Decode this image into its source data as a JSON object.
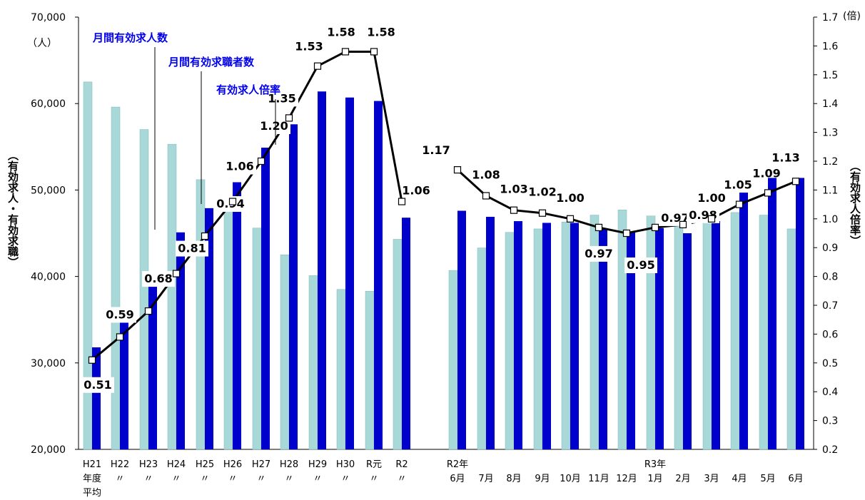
{
  "chart_data": {
    "type": "bar",
    "title": "",
    "ylabel_left": "（有効求人・有効求職）",
    "ylabel_right": "（有効求人倍率）",
    "unit_left": "（人）",
    "unit_right": "(倍)",
    "ylim_left": [
      20000,
      70000
    ],
    "ylim_right": [
      0.2,
      1.7
    ],
    "left_ticks": [
      "20,000",
      "30,000",
      "40,000",
      "50,000",
      "60,000",
      "70,000"
    ],
    "right_ticks": [
      "0.2",
      "0.3",
      "0.4",
      "0.5",
      "0.6",
      "0.7",
      "0.8",
      "0.9",
      "1.0",
      "1.1",
      "1.2",
      "1.3",
      "1.4",
      "1.5",
      "1.6",
      "1.7"
    ],
    "categories": [
      [
        "H21",
        "年度",
        "平均"
      ],
      [
        "H22",
        "〃"
      ],
      [
        "H23",
        "〃"
      ],
      [
        "H24",
        "〃"
      ],
      [
        "H25",
        "〃"
      ],
      [
        "H26",
        "〃"
      ],
      [
        "H27",
        "〃"
      ],
      [
        "H28",
        "〃"
      ],
      [
        "H29",
        "〃"
      ],
      [
        "H30",
        "〃"
      ],
      [
        "R元",
        "〃"
      ],
      [
        "R2",
        "〃"
      ],
      [
        "R2年",
        "6月"
      ],
      [
        "7月"
      ],
      [
        "8月"
      ],
      [
        "9月"
      ],
      [
        "10月"
      ],
      [
        "11月"
      ],
      [
        "12月"
      ],
      [
        "R3年",
        "1月"
      ],
      [
        "2月"
      ],
      [
        "3月"
      ],
      [
        "4月"
      ],
      [
        "5月"
      ],
      [
        "6月"
      ]
    ],
    "series": [
      {
        "name": "月間有効求人数",
        "color": "#a8d8d8",
        "values": [
          62500,
          59600,
          57000,
          55300,
          51200,
          47800,
          45600,
          42500,
          40100,
          38500,
          38300,
          44300,
          40700,
          43300,
          45100,
          45500,
          46300,
          47100,
          47700,
          47000,
          46300,
          46200,
          47400,
          47100,
          45500
        ]
      },
      {
        "name": "月間有効求職者数",
        "color": "#0000cc",
        "values": [
          31800,
          35000,
          39000,
          45100,
          47900,
          50900,
          54900,
          57600,
          61400,
          60700,
          60300,
          46800,
          47600,
          46900,
          46400,
          46200,
          46200,
          45500,
          45100,
          45600,
          45000,
          46400,
          49700,
          51400,
          51400
        ]
      },
      {
        "name": "有効求人倍率",
        "color": "#000000",
        "line": true,
        "values": [
          0.51,
          0.59,
          0.68,
          0.81,
          0.94,
          1.06,
          1.2,
          1.35,
          1.53,
          1.58,
          1.58,
          1.06,
          1.17,
          1.08,
          1.03,
          1.02,
          1.0,
          0.97,
          0.95,
          0.97,
          0.98,
          1.0,
          1.05,
          1.09,
          1.13
        ],
        "labels": [
          "0.51",
          "0.59",
          "0.68",
          "0.81",
          "0.94",
          "1.06",
          "1.20",
          "1.35",
          "1.53",
          "1.58",
          "1.58",
          "1.06",
          "1.17",
          "1.08",
          "1.03",
          "1.02",
          "1.00",
          "0.97",
          "0.95",
          "0.97",
          "0.98",
          "1.00",
          "1.05",
          "1.09",
          "1.13"
        ]
      }
    ]
  }
}
